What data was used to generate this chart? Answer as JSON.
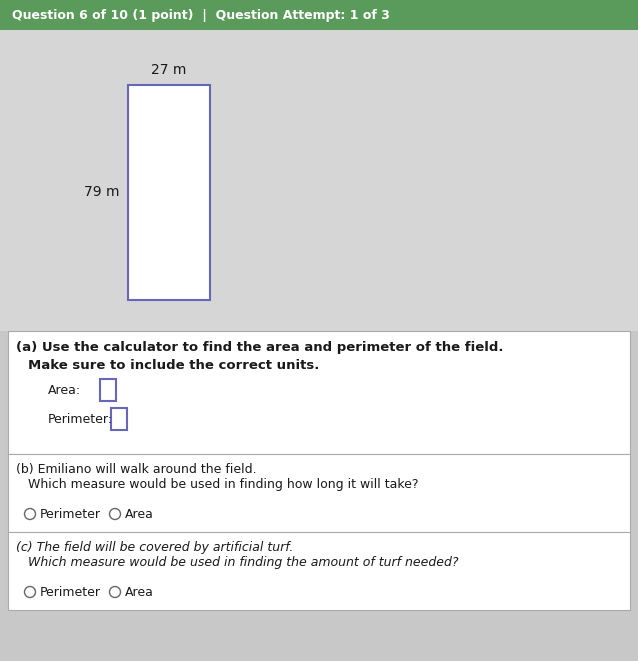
{
  "header_text": "Question 6 of 10 (1 point)  |  Question Attempt: 1 of 3",
  "header_bg": "#5a9a5a",
  "header_text_color": "#ffffff",
  "body_bg": "#c8c8c8",
  "diagram_bg": "#d4d4d4",
  "rect_width_label": "27 m",
  "rect_height_label": "79 m",
  "rect_stroke": "#6666bb",
  "section_a_line1": "(a) Use the calculator to find the area and perimeter of the field.",
  "section_a_line2": "Make sure to include the correct units.",
  "area_label": "Area:",
  "perimeter_label": "Perimeter:",
  "section_b_line1": "(b) Emiliano will walk around the field.",
  "section_b_line2": "Which measure would be used in finding how long it will take?",
  "section_c_line1": "(c) The field will be covered by artificial turf.",
  "section_c_line2": "Which measure would be used in finding the amount of turf needed?",
  "opt1": "Perimeter",
  "opt2": "Area",
  "border_color": "#aaaaaa",
  "text_color": "#1a1a1a",
  "input_box_color": "#6666bb"
}
